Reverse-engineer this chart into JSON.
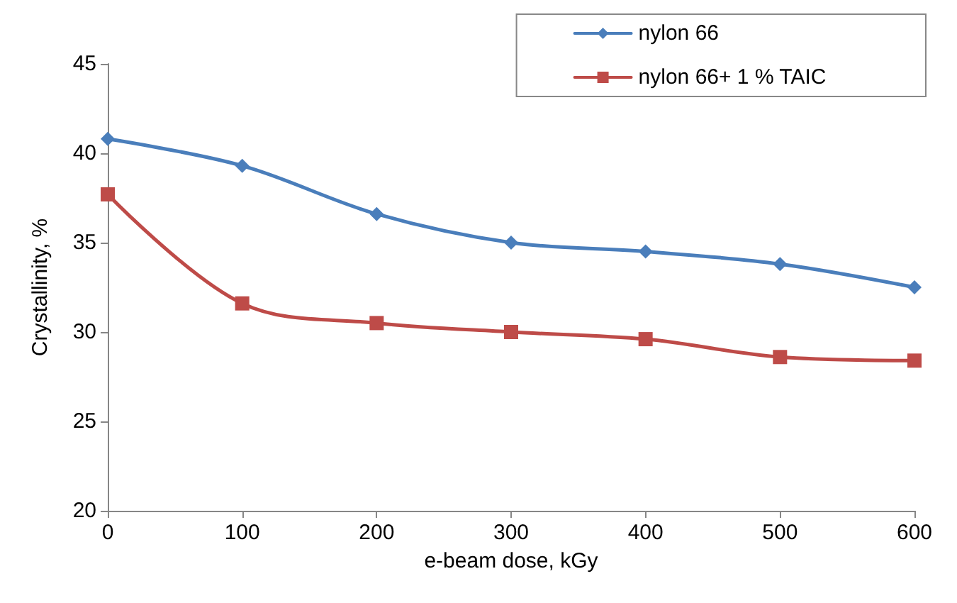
{
  "chart_data": {
    "type": "line",
    "xlabel": "e-beam dose, kGy",
    "ylabel": "Crystallinity, %",
    "x": [
      0,
      100,
      200,
      300,
      400,
      500,
      600
    ],
    "series": [
      {
        "name": "nylon 66",
        "color": "#4a7ebb",
        "marker": "diamond",
        "values": [
          40.8,
          39.3,
          36.6,
          35.0,
          34.5,
          33.8,
          32.5
        ]
      },
      {
        "name": "nylon 66+ 1 % TAIC",
        "color": "#be4b48",
        "marker": "square",
        "values": [
          37.7,
          31.6,
          30.5,
          30.0,
          29.6,
          28.6,
          28.4
        ]
      }
    ],
    "xlim": [
      0,
      600
    ],
    "xticks": [
      0,
      100,
      200,
      300,
      400,
      500,
      600
    ],
    "ylim": [
      20,
      45
    ],
    "yticks": [
      20,
      25,
      30,
      35,
      40,
      45
    ],
    "grid": false,
    "legend": "top right"
  }
}
